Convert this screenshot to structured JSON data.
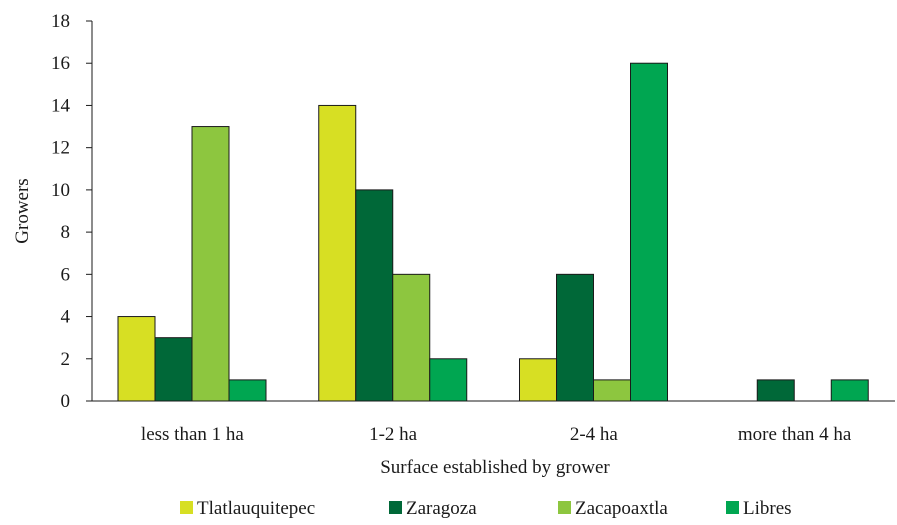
{
  "chart_data": {
    "type": "bar",
    "title": "",
    "xlabel": "Surface established by grower",
    "ylabel": "Growers",
    "ylim": [
      0,
      18
    ],
    "yticks": [
      0,
      2,
      4,
      6,
      8,
      10,
      12,
      14,
      16,
      18
    ],
    "grid": false,
    "legend_position": "bottom",
    "categories": [
      "less than 1 ha",
      "1-2 ha",
      "2-4 ha",
      "more than 4 ha"
    ],
    "series": [
      {
        "name": "Tlatlauquitepec",
        "color": "#d7df23",
        "values": [
          4,
          14,
          2,
          0
        ]
      },
      {
        "name": "Zaragoza",
        "color": "#006838",
        "values": [
          3,
          10,
          6,
          1
        ]
      },
      {
        "name": "Zacapoaxtla",
        "color": "#8dc63f",
        "values": [
          13,
          6,
          1,
          0
        ]
      },
      {
        "name": "Libres",
        "color": "#00a651",
        "values": [
          1,
          2,
          16,
          1
        ]
      }
    ]
  }
}
